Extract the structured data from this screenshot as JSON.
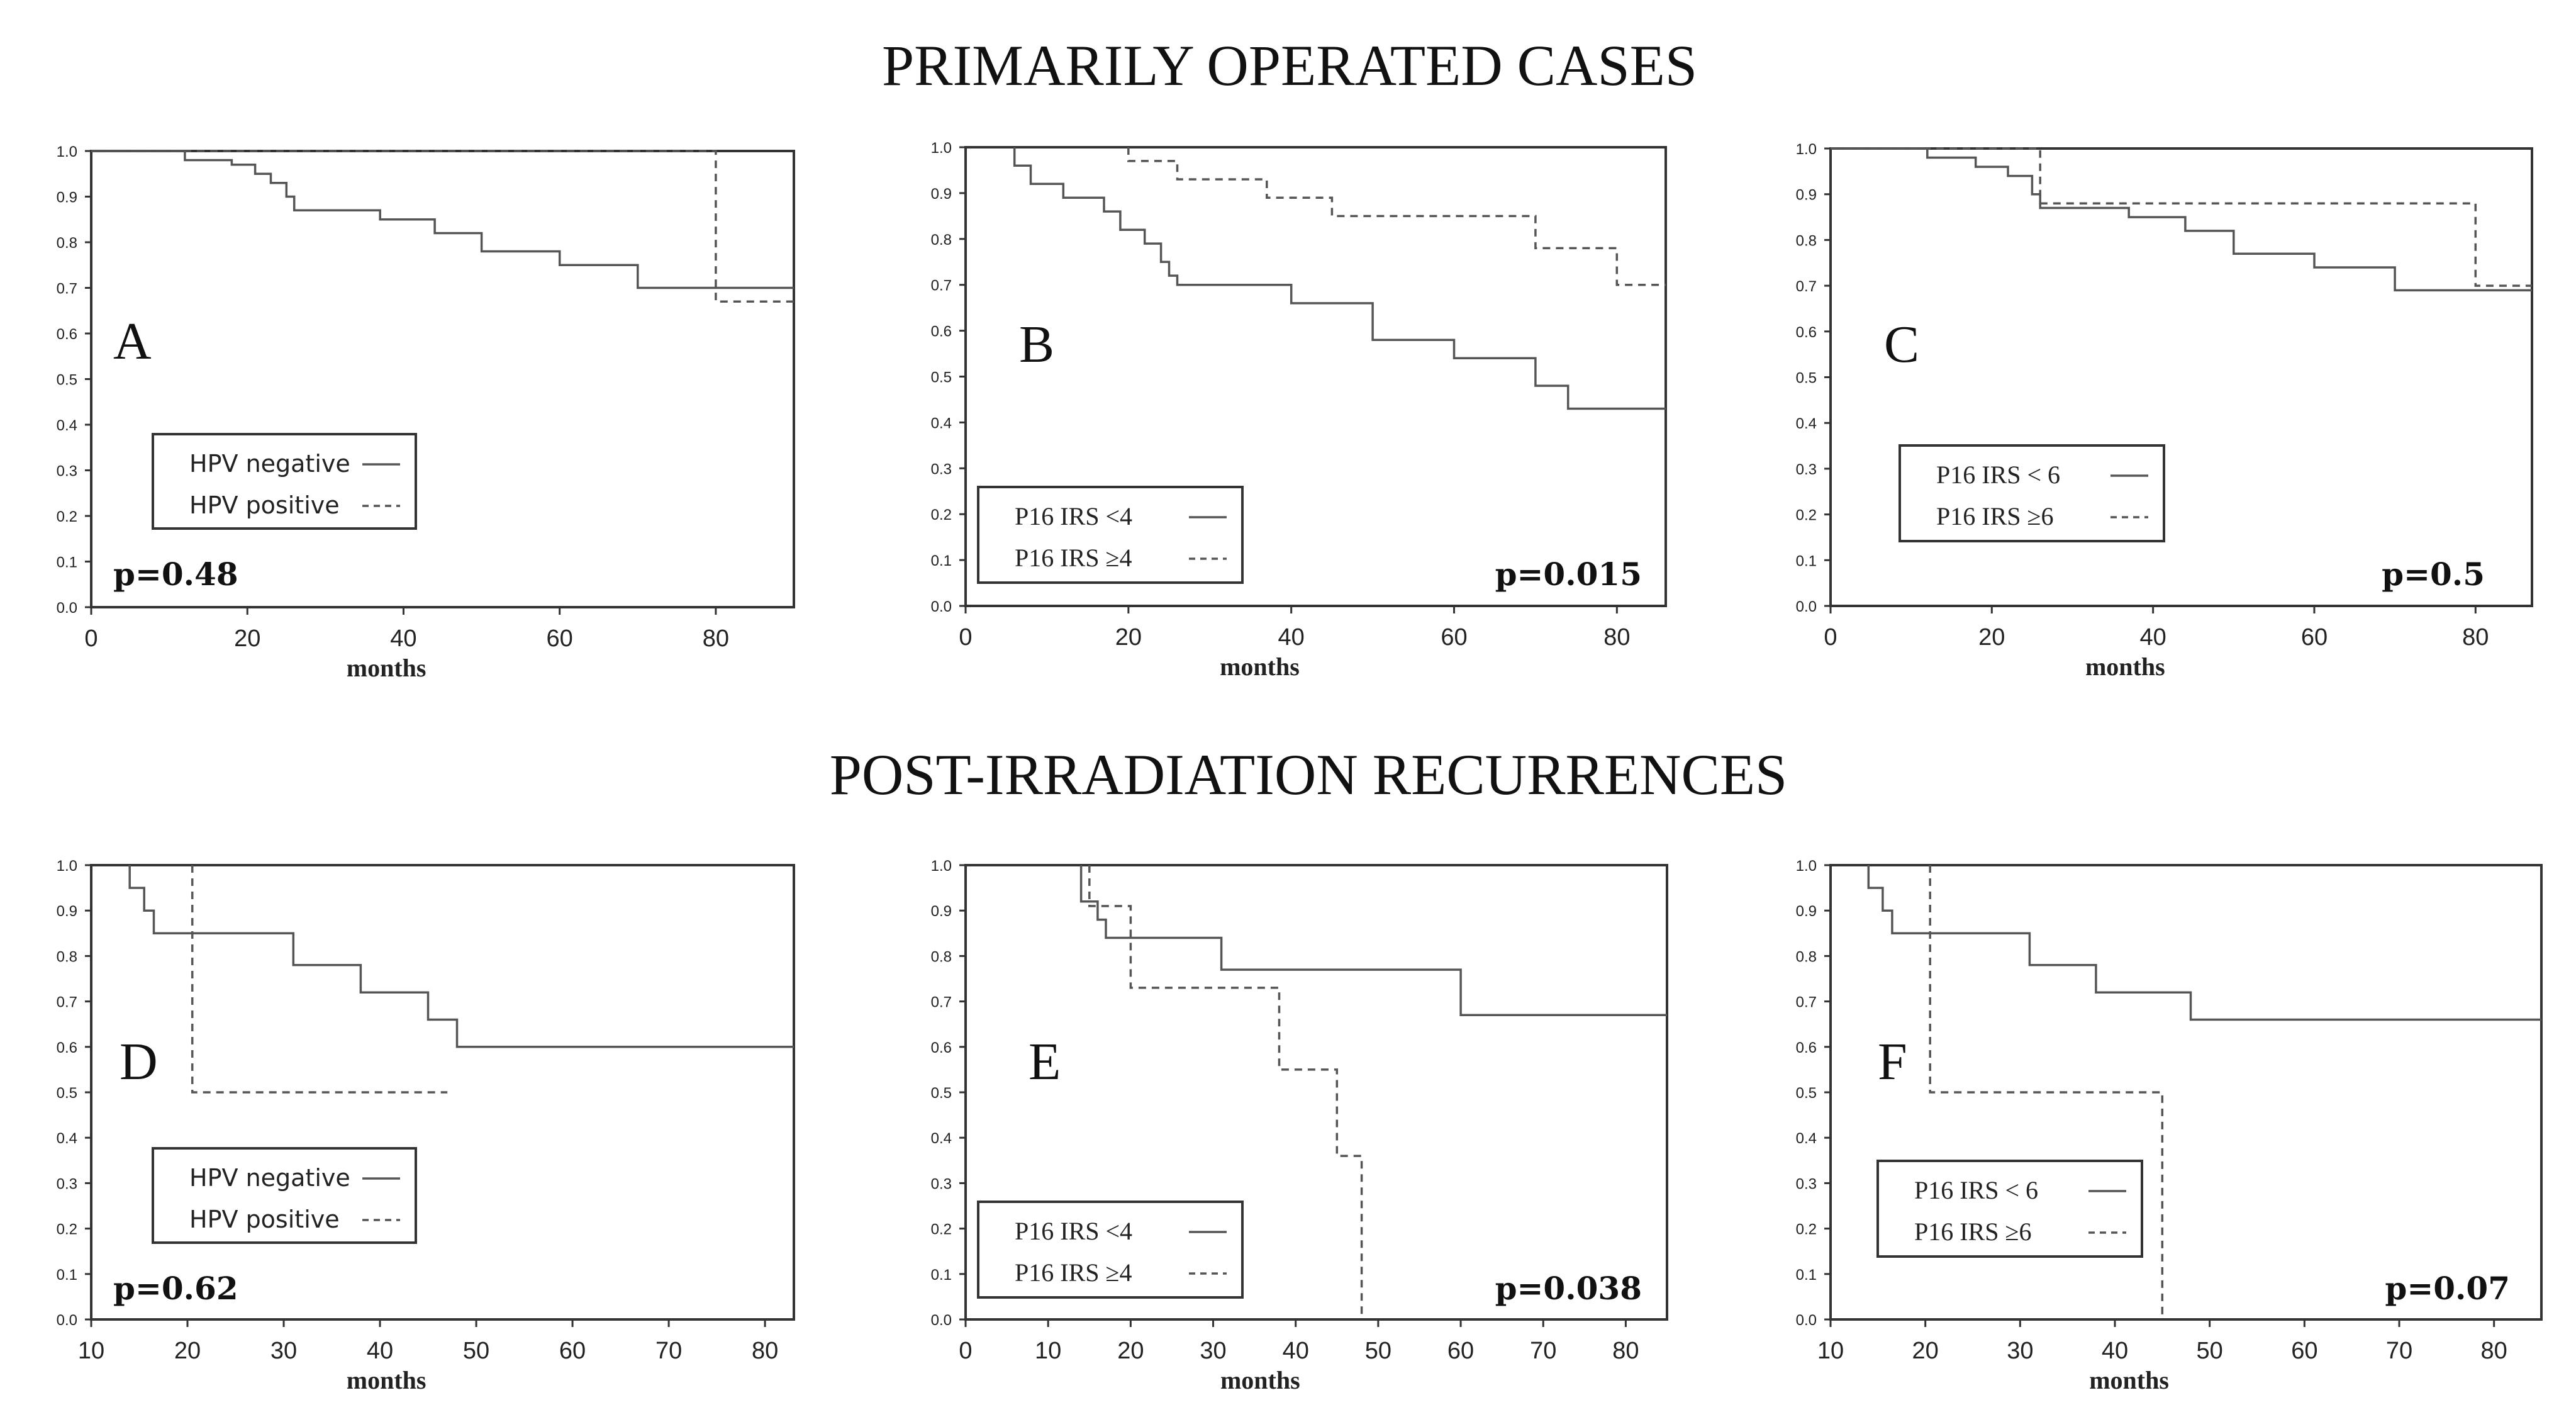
{
  "section_titles": [
    "PRIMARILY OPERATED CASES",
    "POST-IRRADIATION RECURRENCES"
  ],
  "colors": {
    "line": "#555555",
    "axis": "#333333",
    "text": "#111111"
  },
  "chart_data": [
    {
      "type": "line",
      "panel": "A",
      "p_value": "p=0.48",
      "xlabel": "months",
      "ylabel": "",
      "xlim": [
        0,
        90
      ],
      "ylim": [
        0,
        1
      ],
      "xticks": [
        0,
        20,
        40,
        60,
        80
      ],
      "yticks": [
        "0.0",
        "0.1",
        "0.2",
        "0.3",
        "0.4",
        "0.5",
        "0.6",
        "0.7",
        "0.8",
        "0.9",
        "1.0"
      ],
      "legend_font": "sans",
      "legend_placement": "bottom-left",
      "series": [
        {
          "name": "HPV negative",
          "style": "solid",
          "points": [
            [
              0,
              1.0
            ],
            [
              12,
              1.0
            ],
            [
              12,
              0.98
            ],
            [
              18,
              0.98
            ],
            [
              18,
              0.97
            ],
            [
              21,
              0.97
            ],
            [
              21,
              0.95
            ],
            [
              23,
              0.95
            ],
            [
              23,
              0.93
            ],
            [
              25,
              0.93
            ],
            [
              25,
              0.9
            ],
            [
              26,
              0.9
            ],
            [
              26,
              0.87
            ],
            [
              37,
              0.87
            ],
            [
              37,
              0.85
            ],
            [
              44,
              0.85
            ],
            [
              44,
              0.82
            ],
            [
              50,
              0.82
            ],
            [
              50,
              0.78
            ],
            [
              60,
              0.78
            ],
            [
              60,
              0.75
            ],
            [
              70,
              0.75
            ],
            [
              70,
              0.7
            ],
            [
              90,
              0.7
            ]
          ]
        },
        {
          "name": "HPV positive",
          "style": "dashed",
          "points": [
            [
              0,
              1.0
            ],
            [
              80,
              1.0
            ],
            [
              80,
              0.67
            ],
            [
              90,
              0.67
            ]
          ]
        }
      ]
    },
    {
      "type": "line",
      "panel": "B",
      "p_value": "p=0.015",
      "xlabel": "months",
      "ylabel": "",
      "xlim": [
        0,
        86
      ],
      "ylim": [
        0,
        1
      ],
      "xticks": [
        0,
        20,
        40,
        60,
        80
      ],
      "yticks": [
        "0.0",
        "0.1",
        "0.2",
        "0.3",
        "0.4",
        "0.5",
        "0.6",
        "0.7",
        "0.8",
        "0.9",
        "1.0"
      ],
      "legend_font": "serif",
      "legend_placement": "bottom-left",
      "series": [
        {
          "name": "P16 IRS <4",
          "style": "solid",
          "points": [
            [
              6,
              1.0
            ],
            [
              6,
              0.96
            ],
            [
              8,
              0.96
            ],
            [
              8,
              0.92
            ],
            [
              12,
              0.92
            ],
            [
              12,
              0.89
            ],
            [
              17,
              0.89
            ],
            [
              17,
              0.86
            ],
            [
              19,
              0.86
            ],
            [
              19,
              0.82
            ],
            [
              22,
              0.82
            ],
            [
              22,
              0.79
            ],
            [
              24,
              0.79
            ],
            [
              24,
              0.75
            ],
            [
              25,
              0.75
            ],
            [
              25,
              0.72
            ],
            [
              26,
              0.72
            ],
            [
              26,
              0.7
            ],
            [
              40,
              0.7
            ],
            [
              40,
              0.66
            ],
            [
              50,
              0.66
            ],
            [
              50,
              0.58
            ],
            [
              60,
              0.58
            ],
            [
              60,
              0.54
            ],
            [
              70,
              0.54
            ],
            [
              70,
              0.48
            ],
            [
              74,
              0.48
            ],
            [
              74,
              0.43
            ],
            [
              86,
              0.43
            ]
          ]
        },
        {
          "name": "P16 IRS ≥4",
          "style": "dashed",
          "points": [
            [
              20,
              1.0
            ],
            [
              20,
              0.97
            ],
            [
              26,
              0.97
            ],
            [
              26,
              0.93
            ],
            [
              37,
              0.93
            ],
            [
              37,
              0.89
            ],
            [
              45,
              0.89
            ],
            [
              45,
              0.85
            ],
            [
              70,
              0.85
            ],
            [
              70,
              0.78
            ],
            [
              80,
              0.78
            ],
            [
              80,
              0.7
            ],
            [
              86,
              0.7
            ]
          ]
        }
      ]
    },
    {
      "type": "line",
      "panel": "C",
      "p_value": "p=0.5",
      "xlabel": "months",
      "ylabel": "",
      "xlim": [
        0,
        87
      ],
      "ylim": [
        0,
        1
      ],
      "xticks": [
        0,
        20,
        40,
        60,
        80
      ],
      "yticks": [
        "0.0",
        "0.1",
        "0.2",
        "0.3",
        "0.4",
        "0.5",
        "0.6",
        "0.7",
        "0.8",
        "0.9",
        "1.0"
      ],
      "legend_font": "serif",
      "legend_placement": "center-left",
      "series": [
        {
          "name": "P16 IRS < 6",
          "style": "solid",
          "points": [
            [
              0,
              1.0
            ],
            [
              12,
              1.0
            ],
            [
              12,
              0.98
            ],
            [
              18,
              0.98
            ],
            [
              18,
              0.96
            ],
            [
              22,
              0.96
            ],
            [
              22,
              0.94
            ],
            [
              25,
              0.94
            ],
            [
              25,
              0.9
            ],
            [
              26,
              0.9
            ],
            [
              26,
              0.87
            ],
            [
              37,
              0.87
            ],
            [
              37,
              0.85
            ],
            [
              44,
              0.85
            ],
            [
              44,
              0.82
            ],
            [
              50,
              0.82
            ],
            [
              50,
              0.77
            ],
            [
              60,
              0.77
            ],
            [
              60,
              0.74
            ],
            [
              70,
              0.74
            ],
            [
              70,
              0.69
            ],
            [
              87,
              0.69
            ]
          ]
        },
        {
          "name": "P16 IRS ≥6",
          "style": "dashed",
          "points": [
            [
              0,
              1.0
            ],
            [
              26,
              1.0
            ],
            [
              26,
              0.88
            ],
            [
              80,
              0.88
            ],
            [
              80,
              0.7
            ],
            [
              87,
              0.7
            ]
          ]
        }
      ]
    },
    {
      "type": "line",
      "panel": "D",
      "p_value": "p=0.62",
      "xlabel": "months",
      "ylabel": "",
      "xlim": [
        10,
        83
      ],
      "ylim": [
        0,
        1
      ],
      "xticks": [
        10,
        20,
        30,
        40,
        50,
        60,
        70,
        80
      ],
      "yticks": [
        "0.0",
        "0.1",
        "0.2",
        "0.3",
        "0.4",
        "0.5",
        "0.6",
        "0.7",
        "0.8",
        "0.9",
        "1.0"
      ],
      "legend_font": "sans",
      "legend_placement": "bottom-left",
      "series": [
        {
          "name": "HPV negative",
          "style": "solid",
          "points": [
            [
              14,
              1.0
            ],
            [
              14,
              0.95
            ],
            [
              15.5,
              0.95
            ],
            [
              15.5,
              0.9
            ],
            [
              16.5,
              0.9
            ],
            [
              16.5,
              0.85
            ],
            [
              31,
              0.85
            ],
            [
              31,
              0.78
            ],
            [
              38,
              0.78
            ],
            [
              38,
              0.72
            ],
            [
              45,
              0.72
            ],
            [
              45,
              0.66
            ],
            [
              48,
              0.66
            ],
            [
              48,
              0.6
            ],
            [
              83,
              0.6
            ]
          ]
        },
        {
          "name": "HPV positive",
          "style": "dashed",
          "points": [
            [
              20.5,
              1.0
            ],
            [
              20.5,
              0.5
            ],
            [
              47,
              0.5
            ]
          ]
        }
      ]
    },
    {
      "type": "line",
      "panel": "E",
      "p_value": "p=0.038",
      "xlabel": "months",
      "ylabel": "",
      "xlim": [
        0,
        85
      ],
      "ylim": [
        0,
        1
      ],
      "xticks": [
        0,
        10,
        20,
        30,
        40,
        50,
        60,
        70,
        80
      ],
      "yticks": [
        "0.0",
        "0.1",
        "0.2",
        "0.3",
        "0.4",
        "0.5",
        "0.6",
        "0.7",
        "0.8",
        "0.9",
        "1.0"
      ],
      "legend_font": "serif",
      "legend_placement": "bottom-left",
      "series": [
        {
          "name": "P16 IRS <4",
          "style": "solid",
          "points": [
            [
              14,
              1.0
            ],
            [
              14,
              0.92
            ],
            [
              16,
              0.92
            ],
            [
              16,
              0.88
            ],
            [
              17,
              0.88
            ],
            [
              17,
              0.84
            ],
            [
              31,
              0.84
            ],
            [
              31,
              0.77
            ],
            [
              60,
              0.77
            ],
            [
              60,
              0.67
            ],
            [
              85,
              0.67
            ]
          ]
        },
        {
          "name": "P16 IRS ≥4",
          "style": "dashed",
          "points": [
            [
              15,
              1.0
            ],
            [
              15,
              0.91
            ],
            [
              20,
              0.91
            ],
            [
              20,
              0.73
            ],
            [
              38,
              0.73
            ],
            [
              38,
              0.55
            ],
            [
              45,
              0.55
            ],
            [
              45,
              0.36
            ],
            [
              48,
              0.36
            ],
            [
              48,
              0.0
            ]
          ]
        }
      ]
    },
    {
      "type": "line",
      "panel": "F",
      "p_value": "p=0.07",
      "xlabel": "months",
      "ylabel": "",
      "xlim": [
        10,
        85
      ],
      "ylim": [
        0,
        1
      ],
      "xticks": [
        10,
        20,
        30,
        40,
        50,
        60,
        70,
        80
      ],
      "yticks": [
        "0.0",
        "0.1",
        "0.2",
        "0.3",
        "0.4",
        "0.5",
        "0.6",
        "0.7",
        "0.8",
        "0.9",
        "1.0"
      ],
      "legend_font": "serif",
      "legend_placement": "bottom-left",
      "series": [
        {
          "name": "P16 IRS < 6",
          "style": "solid",
          "points": [
            [
              14,
              1.0
            ],
            [
              14,
              0.95
            ],
            [
              15.5,
              0.95
            ],
            [
              15.5,
              0.9
            ],
            [
              16.5,
              0.9
            ],
            [
              16.5,
              0.85
            ],
            [
              31,
              0.85
            ],
            [
              31,
              0.78
            ],
            [
              38,
              0.78
            ],
            [
              38,
              0.72
            ],
            [
              48,
              0.72
            ],
            [
              48,
              0.66
            ],
            [
              85,
              0.66
            ]
          ]
        },
        {
          "name": "P16 IRS ≥6",
          "style": "dashed",
          "points": [
            [
              20.5,
              1.0
            ],
            [
              20.5,
              0.5
            ],
            [
              45,
              0.5
            ],
            [
              45,
              0.0
            ]
          ]
        }
      ]
    }
  ]
}
